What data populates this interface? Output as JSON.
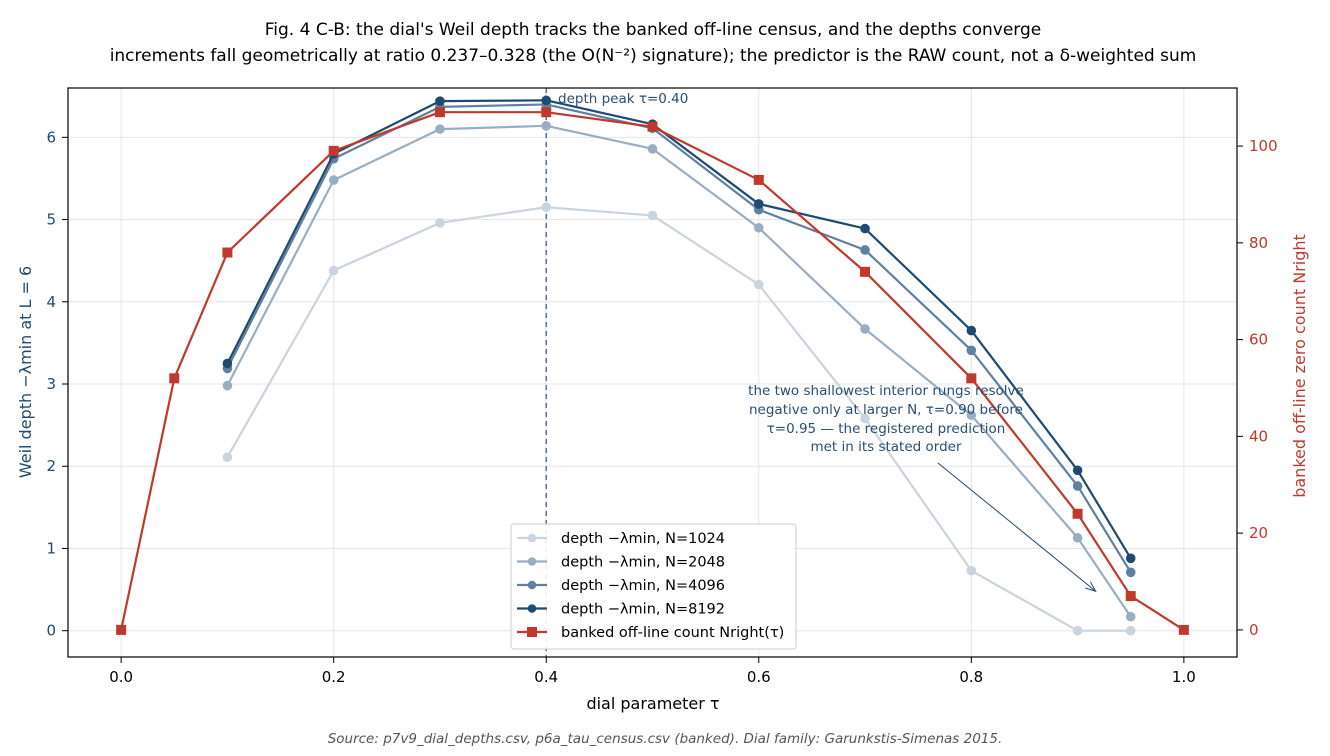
{
  "chart_data": {
    "type": "line",
    "title_line1": "Fig. 4  C-B: the dial's Weil depth tracks the banked off-line census, and the depths converge",
    "title_line2": "increments fall geometrically at ratio 0.237–0.328 (the O(N⁻²) signature); the predictor is the RAW count, not a δ-weighted sum",
    "xlabel": "dial parameter τ",
    "ylabel_left": "Weil depth −λmin at L = 6",
    "ylabel_right": "banked off-line zero count Nright",
    "xlim": [
      -0.05,
      1.05
    ],
    "ylim_left": [
      -0.32,
      6.6
    ],
    "ylim_right": [
      -5.6,
      112.0
    ],
    "xticks": [
      0.0,
      0.2,
      0.4,
      0.6,
      0.8,
      1.0
    ],
    "xtick_labels": [
      "0.0",
      "0.2",
      "0.4",
      "0.6",
      "0.8",
      "1.0"
    ],
    "yticks_left": [
      0,
      1,
      2,
      3,
      4,
      5,
      6
    ],
    "ytick_labels_left": [
      "0",
      "1",
      "2",
      "3",
      "4",
      "5",
      "6"
    ],
    "yticks_right": [
      0,
      20,
      40,
      60,
      80,
      100
    ],
    "ytick_labels_right": [
      "0",
      "20",
      "40",
      "60",
      "80",
      "100"
    ],
    "grid": true,
    "legend_position": "bottom-center",
    "x": [
      0.1,
      0.2,
      0.3,
      0.4,
      0.5,
      0.6,
      0.7,
      0.8,
      0.9,
      0.95
    ],
    "series": [
      {
        "name": "depth −λmin, N=1024",
        "color": "#c9d4df",
        "axis": "left",
        "values": [
          2.11,
          4.38,
          4.96,
          5.15,
          5.05,
          4.21,
          2.58,
          0.73,
          0.0,
          0.0
        ]
      },
      {
        "name": "depth −λmin, N=2048",
        "color": "#9aaec2",
        "axis": "left",
        "values": [
          2.98,
          5.48,
          6.1,
          6.14,
          5.86,
          4.9,
          3.67,
          2.62,
          1.13,
          0.17
        ]
      },
      {
        "name": "depth −λmin, N=4096",
        "color": "#5f80a1",
        "axis": "left",
        "values": [
          3.19,
          5.74,
          6.37,
          6.4,
          6.11,
          5.12,
          4.63,
          3.41,
          1.76,
          0.71
        ]
      },
      {
        "name": "depth −λmin, N=8192",
        "color": "#1f4a72",
        "axis": "left",
        "values": [
          3.25,
          5.8,
          6.44,
          6.45,
          6.16,
          5.19,
          4.89,
          3.65,
          1.95,
          0.88
        ]
      }
    ],
    "census": {
      "name": "banked off-line count Nright(τ)",
      "color": "#c0392b",
      "axis": "right",
      "x": [
        0.0,
        0.05,
        0.1,
        0.2,
        0.3,
        0.4,
        0.5,
        0.6,
        0.7,
        0.8,
        0.9,
        0.95,
        1.0
      ],
      "values": [
        0,
        52,
        78,
        99,
        107,
        107,
        104,
        93,
        74,
        52,
        24,
        7,
        0
      ]
    },
    "peak_line": {
      "x": 0.4,
      "label": "depth peak τ=0.40",
      "color": "#4a6a8c"
    },
    "annotation": {
      "lines": [
        "the two shallowest interior rungs resolve",
        "negative only at larger N, τ=0.90 before",
        "τ=0.95 — the registered prediction",
        "met in its stated order"
      ],
      "arrow_to": {
        "x": 0.917,
        "y_left": 0.48
      }
    },
    "source": "Source: p7v9_dial_depths.csv, p6a_tau_census.csv (banked). Dial family: Garunkstis-Simenas 2015."
  }
}
